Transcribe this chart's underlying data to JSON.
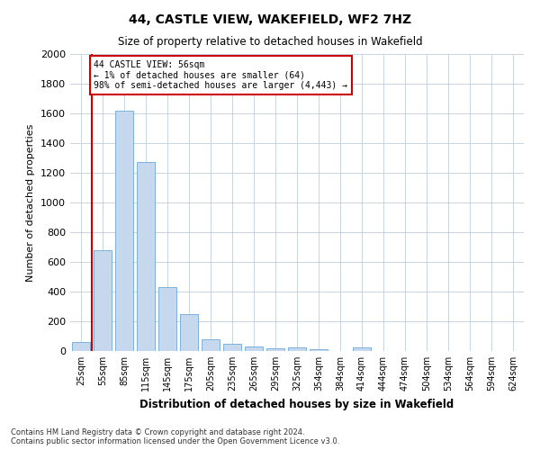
{
  "title": "44, CASTLE VIEW, WAKEFIELD, WF2 7HZ",
  "subtitle": "Size of property relative to detached houses in Wakefield",
  "xlabel": "Distribution of detached houses by size in Wakefield",
  "ylabel": "Number of detached properties",
  "bar_labels": [
    "25sqm",
    "55sqm",
    "85sqm",
    "115sqm",
    "145sqm",
    "175sqm",
    "205sqm",
    "235sqm",
    "265sqm",
    "295sqm",
    "325sqm",
    "354sqm",
    "384sqm",
    "414sqm",
    "444sqm",
    "474sqm",
    "504sqm",
    "534sqm",
    "564sqm",
    "594sqm",
    "624sqm"
  ],
  "bar_values": [
    60,
    680,
    1620,
    1270,
    430,
    250,
    80,
    50,
    30,
    20,
    25,
    10,
    0,
    25,
    0,
    0,
    0,
    0,
    0,
    0,
    0
  ],
  "bar_color": "#c5d8ed",
  "bar_edge_color": "#6fa8d4",
  "annotation_text": "44 CASTLE VIEW: 56sqm\n← 1% of detached houses are smaller (64)\n98% of semi-detached houses are larger (4,443) →",
  "annotation_box_color": "#ffffff",
  "annotation_border_color": "#cc0000",
  "vline_color": "#cc0000",
  "vline_x": 0.5,
  "ylim": [
    0,
    2000
  ],
  "yticks": [
    0,
    200,
    400,
    600,
    800,
    1000,
    1200,
    1400,
    1600,
    1800,
    2000
  ],
  "footnote": "Contains HM Land Registry data © Crown copyright and database right 2024.\nContains public sector information licensed under the Open Government Licence v3.0.",
  "background_color": "#ffffff",
  "grid_color": "#c8d4e0"
}
